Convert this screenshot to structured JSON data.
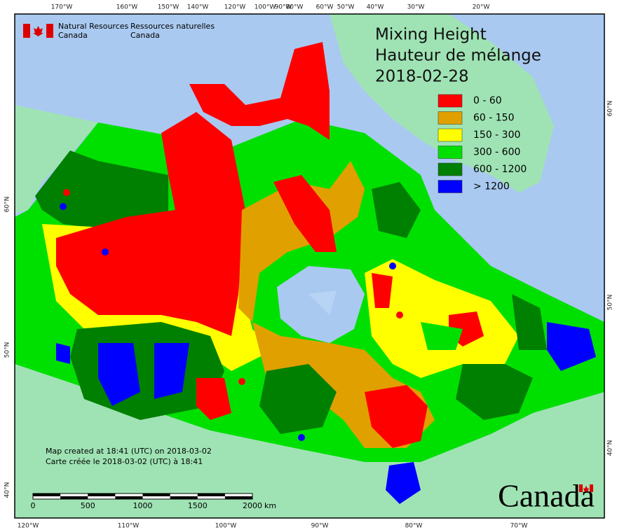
{
  "header": {
    "agency_en": "Natural Resources",
    "agency_en_2": "Canada",
    "agency_fr": "Ressources naturelles",
    "agency_fr_2": "Canada"
  },
  "title": [
    "Mixing Height",
    "Hauteur de mélange",
    "2018-02-28"
  ],
  "legend": [
    {
      "label": "0 - 60",
      "color": "#ff0000"
    },
    {
      "label": "60 - 150",
      "color": "#e0a000"
    },
    {
      "label": "150 - 300",
      "color": "#ffff00"
    },
    {
      "label": "300 - 600",
      "color": "#00e000"
    },
    {
      "label": "600 - 1200",
      "color": "#008000"
    },
    {
      "label": "> 1200",
      "color": "#0000ff"
    }
  ],
  "graticule": {
    "top": [
      "170°W",
      "160°W",
      "150°W",
      "140°W",
      "120°W",
      "100°W",
      "90°W",
      "80°W",
      "60°W",
      "50°W",
      "40°W",
      "30°W",
      "20°W"
    ],
    "bottom": [
      "120°W",
      "110°W",
      "100°W",
      "90°W",
      "80°W",
      "70°W"
    ],
    "left": [
      "60°N",
      "50°N",
      "40°N"
    ],
    "right": [
      "60°N",
      "50°N",
      "40°N"
    ]
  },
  "credits": [
    "Map created at 18:41 (UTC) on 2018-03-02",
    "Carte créée le 2018-03-02 (UTC) à 18:41"
  ],
  "scale": {
    "ticks": [
      "0",
      "500",
      "1000",
      "1500",
      "2000"
    ],
    "unit": "km"
  },
  "wordmark": "Canada"
}
